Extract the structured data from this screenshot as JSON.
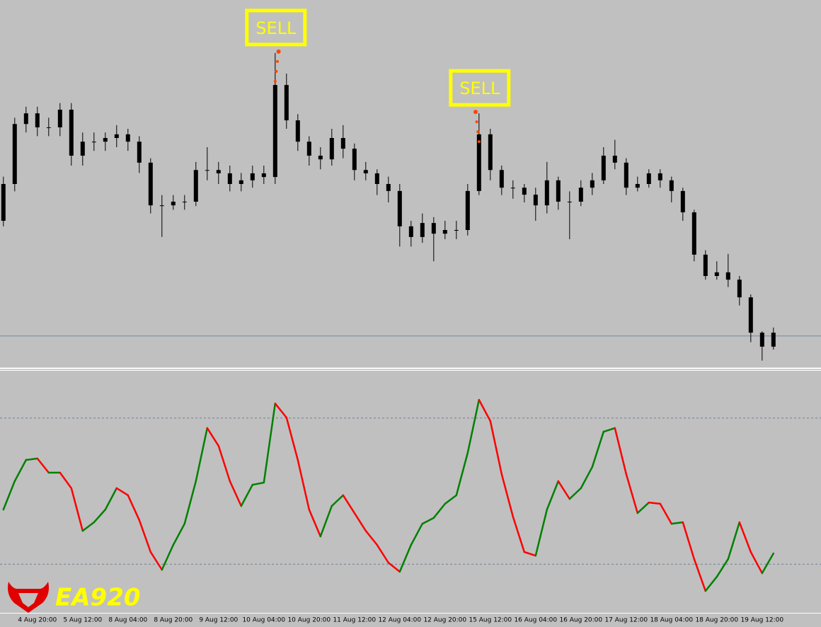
{
  "chart_data": [
    {
      "type": "candlestick",
      "x": [
        0,
        1,
        2,
        3,
        4,
        5,
        6,
        7,
        8,
        9,
        10,
        11,
        12,
        13,
        14,
        15,
        16,
        17,
        18,
        19,
        20,
        21,
        22,
        23,
        24,
        25,
        26,
        27,
        28,
        29,
        30,
        31,
        32,
        33,
        34,
        35,
        36,
        37,
        38,
        39,
        40,
        41,
        42,
        43,
        44,
        45,
        46,
        47,
        48,
        49,
        50,
        51,
        52,
        53,
        54,
        55,
        56,
        57,
        58,
        59,
        60,
        61,
        62,
        63,
        64,
        65,
        66,
        67,
        68
      ],
      "open": [
        40,
        50,
        66.3,
        69.2,
        65.4,
        65.4,
        70.2,
        57.7,
        61.5,
        61.5,
        62.5,
        63.5,
        61.5,
        55.8,
        44.2,
        44.2,
        45.2,
        45.2,
        53.8,
        53.8,
        52.9,
        50,
        51,
        52.9,
        51.9,
        76.9,
        67.3,
        61.5,
        57.7,
        56.7,
        62.5,
        59.6,
        53.8,
        52.9,
        50,
        48.1,
        38.5,
        35.6,
        39.4,
        36.5,
        37.5,
        37.5,
        48.1,
        63.5,
        53.8,
        49,
        49,
        47.1,
        44.2,
        51,
        45.2,
        45.2,
        49,
        51,
        57.7,
        55.8,
        49,
        50,
        52.9,
        51,
        48.1,
        42.3,
        30.8,
        25,
        26,
        24,
        19.2,
        9.6,
        5.8
      ],
      "high": [
        52,
        68,
        71,
        71,
        68,
        72,
        72,
        64,
        64,
        64,
        66,
        65,
        63,
        57,
        47,
        47,
        47,
        56,
        60,
        56,
        55,
        53,
        55,
        55,
        85.6,
        80,
        69,
        63,
        60,
        65,
        66,
        61,
        56,
        54,
        52,
        50,
        40,
        42,
        41,
        40,
        40,
        50,
        69.2,
        65,
        55,
        51,
        50,
        49,
        56,
        52,
        48,
        51,
        53,
        60,
        62,
        57,
        52,
        54,
        54,
        52,
        49,
        43,
        32,
        29,
        31,
        25,
        20,
        10,
        11
      ],
      "low": [
        38.5,
        48,
        64,
        63,
        63,
        63,
        55,
        55,
        59,
        59,
        60,
        59,
        53,
        42,
        35.6,
        43,
        43,
        44,
        51,
        50,
        48,
        48,
        49,
        50,
        50,
        65,
        59,
        55,
        54,
        55,
        57,
        51,
        51,
        47,
        45,
        33,
        33,
        34,
        29,
        35,
        35,
        36,
        47,
        51,
        47,
        46,
        45,
        40,
        42,
        43,
        35,
        44,
        47,
        50,
        54,
        47,
        48,
        49,
        49,
        45,
        40,
        29,
        24,
        24,
        22,
        17,
        7,
        2,
        5
      ],
      "close": [
        50,
        66.3,
        69.2,
        65.4,
        65.4,
        70.2,
        57.7,
        61.5,
        61.5,
        62.5,
        63.5,
        61.5,
        55.8,
        44.2,
        44.2,
        45.2,
        45.2,
        53.8,
        53.8,
        52.9,
        50,
        51,
        52.9,
        51.9,
        76.9,
        67.3,
        61.5,
        57.7,
        56.7,
        62.5,
        59.6,
        53.8,
        52.9,
        50,
        48.1,
        38.5,
        35.6,
        39.4,
        36.5,
        37.5,
        37.5,
        48.1,
        63.5,
        53.8,
        49,
        49,
        47.1,
        44.2,
        51,
        45.2,
        45.2,
        49,
        51,
        57.7,
        55.8,
        49,
        50,
        52.9,
        51,
        48.1,
        42.3,
        30.8,
        25,
        26,
        24,
        19.2,
        9.6,
        5.8,
        9.6
      ],
      "color": "#000000",
      "xlim": [
        -0.3,
        72.2
      ],
      "ylim": [
        0,
        100
      ],
      "xticks": [
        {
          "value": 3,
          "label": "4 Aug 20:00"
        },
        {
          "value": 7,
          "label": "5 Aug 12:00"
        },
        {
          "value": 11,
          "label": "8 Aug 04:00"
        },
        {
          "value": 15,
          "label": "8 Aug 20:00"
        },
        {
          "value": 19,
          "label": "9 Aug 12:00"
        },
        {
          "value": 23,
          "label": "10 Aug 04:00"
        },
        {
          "value": 27,
          "label": "10 Aug 20:00"
        },
        {
          "value": 31,
          "label": "11 Aug 12:00"
        },
        {
          "value": 35,
          "label": "12 Aug 04:00"
        },
        {
          "value": 39,
          "label": "12 Aug 20:00"
        },
        {
          "value": 43,
          "label": "15 Aug 12:00"
        },
        {
          "value": 47,
          "label": "16 Aug 04:00"
        },
        {
          "value": 51,
          "label": "16 Aug 20:00"
        },
        {
          "value": 55,
          "label": "17 Aug 12:00"
        },
        {
          "value": 59,
          "label": "18 Aug 04:00"
        },
        {
          "value": 63,
          "label": "18 Aug 20:00"
        },
        {
          "value": 67,
          "label": "19 Aug 12:00"
        }
      ],
      "price_line": 8.7,
      "annotations": [
        {
          "text": "SELL",
          "x": 24,
          "color": "#ffff00"
        },
        {
          "text": "SELL",
          "x": 42,
          "color": "#ffff00"
        }
      ]
    },
    {
      "type": "line",
      "x": [
        0,
        1,
        2,
        3,
        4,
        5,
        6,
        7,
        8,
        9,
        10,
        11,
        12,
        13,
        14,
        15,
        16,
        17,
        18,
        19,
        20,
        21,
        22,
        23,
        24,
        25,
        26,
        27,
        28,
        29,
        30,
        31,
        32,
        33,
        34,
        35,
        36,
        37,
        38,
        39,
        40,
        41,
        42,
        43,
        44,
        45,
        46,
        47,
        48,
        49,
        50,
        51,
        52,
        53,
        54,
        55,
        56,
        57,
        58,
        59,
        60,
        61,
        62,
        63,
        64,
        65,
        66,
        67,
        68
      ],
      "values": [
        42.4,
        54.1,
        62.8,
        63.4,
        57.6,
        57.6,
        51.2,
        33.7,
        37.2,
        42.4,
        51.2,
        48.3,
        38.1,
        25,
        17.7,
        27.9,
        36.6,
        54.1,
        75.9,
        68.6,
        54.1,
        43.9,
        52.6,
        53.5,
        86,
        80.2,
        62.8,
        42.4,
        31.4,
        43.9,
        48.3,
        41,
        33.7,
        27.9,
        20.6,
        16.9,
        27.9,
        36.6,
        39,
        44.8,
        48.3,
        65.7,
        87.5,
        78.8,
        57,
        39.5,
        25,
        23.5,
        42.4,
        54.1,
        46.8,
        51.2,
        59.9,
        74.4,
        75.9,
        57,
        41,
        45.3,
        44.8,
        36.6,
        37.2,
        22.1,
        9,
        14.8,
        22.1,
        37.2,
        25,
        16.3,
        24.4
      ],
      "up_color": "#008000",
      "down_color": "#ff0000",
      "xlim": [
        -0.3,
        72.2
      ],
      "ylim": [
        0,
        100
      ],
      "levels": [
        80,
        20
      ]
    }
  ],
  "logo": {
    "text": "EA920"
  }
}
